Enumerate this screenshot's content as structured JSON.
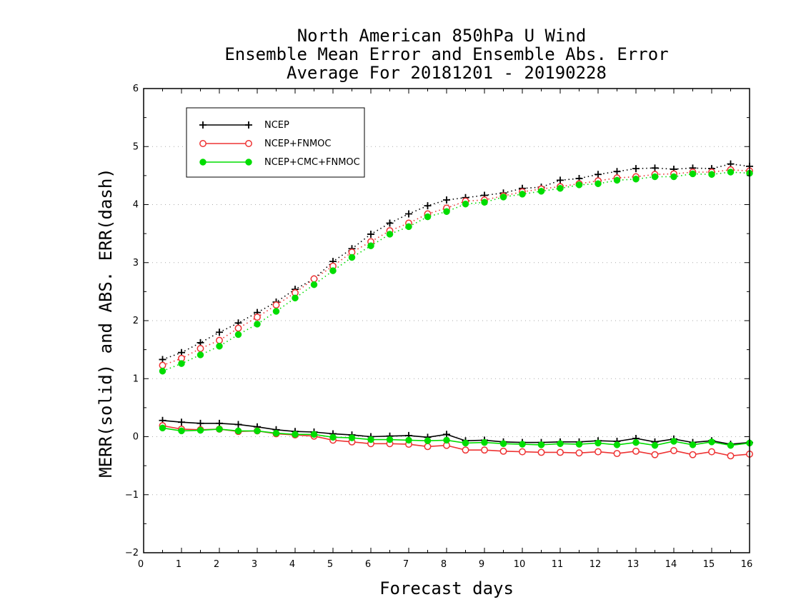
{
  "chart_data": {
    "type": "line",
    "title": [
      "North American 850hPa U Wind",
      "Ensemble Mean Error and Ensemble Abs. Error",
      "Average For 20181201 - 20190228"
    ],
    "xlabel": "Forecast days",
    "ylabel": "MERR(solid) and ABS. ERR(dash)",
    "xlim": [
      0,
      16
    ],
    "ylim": [
      -2,
      6
    ],
    "xticks": [
      0,
      1,
      2,
      3,
      4,
      5,
      6,
      7,
      8,
      9,
      10,
      11,
      12,
      13,
      14,
      15,
      16
    ],
    "yticks": [
      -2,
      -1,
      0,
      1,
      2,
      3,
      4,
      5,
      6
    ],
    "grid": "horizontal dotted",
    "legend_position": "top-left",
    "x": [
      0.5,
      1,
      1.5,
      2,
      2.5,
      3,
      3.5,
      4,
      4.5,
      5,
      5.5,
      6,
      6.5,
      7,
      7.5,
      8,
      8.5,
      9,
      9.5,
      10,
      10.5,
      11,
      11.5,
      12,
      12.5,
      13,
      13.5,
      14,
      14.5,
      15,
      15.5,
      16
    ],
    "series": [
      {
        "name": "NCEP",
        "color": "#000000",
        "marker": "plus",
        "mean_error": [
          0.28,
          0.25,
          0.23,
          0.23,
          0.21,
          0.17,
          0.12,
          0.09,
          0.08,
          0.05,
          0.03,
          0.0,
          0.01,
          0.02,
          -0.01,
          0.04,
          -0.07,
          -0.06,
          -0.09,
          -0.1,
          -0.1,
          -0.09,
          -0.09,
          -0.07,
          -0.08,
          -0.03,
          -0.09,
          -0.04,
          -0.1,
          -0.07,
          -0.13,
          -0.1
        ],
        "abs_error": [
          1.33,
          1.45,
          1.62,
          1.8,
          1.96,
          2.14,
          2.32,
          2.54,
          2.72,
          3.02,
          3.24,
          3.49,
          3.68,
          3.84,
          3.98,
          4.08,
          4.12,
          4.16,
          4.2,
          4.28,
          4.3,
          4.42,
          4.45,
          4.52,
          4.57,
          4.62,
          4.63,
          4.61,
          4.63,
          4.62,
          4.7,
          4.66
        ]
      },
      {
        "name": "NCEP+FNMOC",
        "color": "#ee3333",
        "marker": "open-circle",
        "mean_error": [
          0.19,
          0.13,
          0.12,
          0.13,
          0.09,
          0.1,
          0.05,
          0.03,
          0.01,
          -0.06,
          -0.09,
          -0.12,
          -0.12,
          -0.13,
          -0.17,
          -0.15,
          -0.23,
          -0.23,
          -0.25,
          -0.26,
          -0.27,
          -0.27,
          -0.28,
          -0.26,
          -0.29,
          -0.25,
          -0.31,
          -0.24,
          -0.31,
          -0.26,
          -0.33,
          -0.3
        ],
        "abs_error": [
          1.23,
          1.35,
          1.52,
          1.66,
          1.87,
          2.06,
          2.27,
          2.48,
          2.72,
          2.94,
          3.18,
          3.36,
          3.55,
          3.68,
          3.84,
          3.94,
          4.06,
          4.08,
          4.15,
          4.22,
          4.27,
          4.31,
          4.36,
          4.41,
          4.46,
          4.48,
          4.52,
          4.53,
          4.56,
          4.56,
          4.6,
          4.58
        ]
      },
      {
        "name": "NCEP+CMC+FNMOC",
        "color": "#00dd00",
        "marker": "filled-circle",
        "mean_error": [
          0.15,
          0.1,
          0.11,
          0.13,
          0.1,
          0.1,
          0.06,
          0.04,
          0.04,
          -0.01,
          -0.02,
          -0.05,
          -0.05,
          -0.06,
          -0.07,
          -0.06,
          -0.11,
          -0.1,
          -0.12,
          -0.13,
          -0.14,
          -0.12,
          -0.13,
          -0.11,
          -0.14,
          -0.1,
          -0.15,
          -0.08,
          -0.14,
          -0.09,
          -0.15,
          -0.11
        ],
        "abs_error": [
          1.13,
          1.26,
          1.41,
          1.56,
          1.76,
          1.94,
          2.16,
          2.39,
          2.62,
          2.86,
          3.09,
          3.29,
          3.49,
          3.62,
          3.79,
          3.88,
          4.01,
          4.04,
          4.13,
          4.18,
          4.23,
          4.28,
          4.34,
          4.36,
          4.42,
          4.44,
          4.48,
          4.48,
          4.53,
          4.52,
          4.56,
          4.54
        ]
      }
    ]
  }
}
